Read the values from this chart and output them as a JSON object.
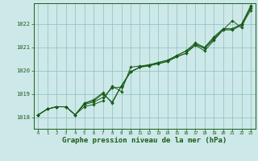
{
  "background_color": "#cde8e8",
  "grid_color": "#8abfbf",
  "line_color": "#1a5c1a",
  "marker_color": "#1a5c1a",
  "xlabel": "Graphe pression niveau de la mer (hPa)",
  "xlabel_fontsize": 6.5,
  "xlim": [
    -0.5,
    23.5
  ],
  "ylim": [
    1017.5,
    1022.9
  ],
  "yticks": [
    1018,
    1019,
    1020,
    1021,
    1022
  ],
  "xticks": [
    0,
    1,
    2,
    3,
    4,
    5,
    6,
    7,
    8,
    9,
    10,
    11,
    12,
    13,
    14,
    15,
    16,
    17,
    18,
    19,
    20,
    21,
    22,
    23
  ],
  "series": [
    [
      1018.1,
      1018.35,
      1018.45,
      1018.45,
      1018.1,
      1018.45,
      1018.55,
      1018.7,
      1019.35,
      1019.1,
      1020.15,
      1020.2,
      1020.25,
      1020.3,
      1020.4,
      1020.6,
      1020.75,
      1021.1,
      1020.85,
      1021.3,
      1021.75,
      1022.15,
      1021.85,
      1022.75
    ],
    [
      1018.1,
      1018.35,
      1018.45,
      1018.45,
      1018.1,
      1018.55,
      1018.65,
      1018.85,
      1019.25,
      1019.3,
      1019.95,
      1020.15,
      1020.2,
      1020.3,
      1020.4,
      1020.6,
      1020.75,
      1021.15,
      1020.95,
      1021.35,
      1021.75,
      1021.75,
      1021.95,
      1022.6
    ],
    [
      1018.1,
      1018.35,
      1018.45,
      1018.45,
      1018.1,
      1018.6,
      1018.7,
      1019.0,
      1018.65,
      1019.35,
      1019.95,
      1020.15,
      1020.25,
      1020.35,
      1020.45,
      1020.65,
      1020.85,
      1021.2,
      1021.0,
      1021.4,
      1021.8,
      1021.8,
      1022.0,
      1022.7
    ],
    [
      1018.1,
      1018.35,
      1018.45,
      1018.45,
      1018.1,
      1018.6,
      1018.75,
      1019.05,
      1018.6,
      1019.35,
      1019.95,
      1020.15,
      1020.25,
      1020.35,
      1020.45,
      1020.65,
      1020.85,
      1021.1,
      1021.0,
      1021.45,
      1021.8,
      1021.8,
      1022.0,
      1022.8
    ]
  ]
}
